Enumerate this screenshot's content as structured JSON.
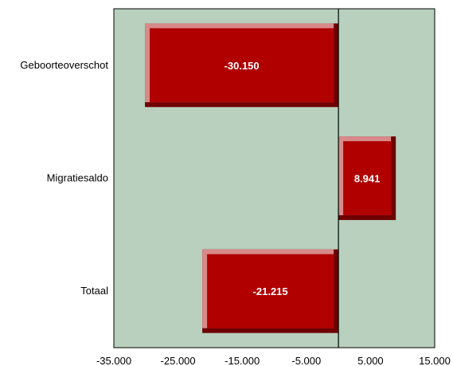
{
  "colors": {
    "plot_background": "#b8d0bd",
    "bar_fill": "#b00000",
    "bar_highlight": "#d88a8a",
    "bar_shadow": "#6e0000",
    "axis": "#000000"
  },
  "chart_data": {
    "type": "bar",
    "orientation": "horizontal",
    "categories": [
      "Geboorteoverschot",
      "Migratiesaldo",
      "Totaal"
    ],
    "values": [
      -30150,
      8941,
      -21215
    ],
    "value_labels": [
      "-30.150",
      "8.941",
      "-21.215"
    ],
    "xlim": [
      -35000,
      15000
    ],
    "xticks": [
      -35000,
      -25000,
      -15000,
      -5000,
      5000,
      15000
    ],
    "xtick_labels": [
      "-35.000",
      "-25.000",
      "-15.000",
      "-5.000",
      "5.000",
      "15.000"
    ],
    "zero_line": true,
    "grid": false,
    "legend": "none"
  }
}
